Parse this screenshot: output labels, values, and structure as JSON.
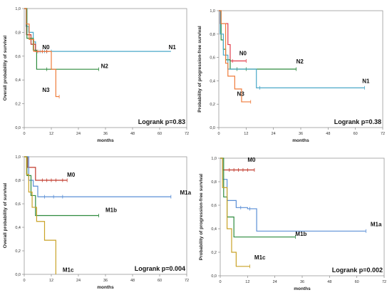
{
  "chart_data": [
    {
      "type": "line",
      "ylabel": "Overall probability of survival",
      "xlabel": "months",
      "xlim": [
        0,
        72
      ],
      "ylim": [
        0,
        1
      ],
      "xticks": [
        "0",
        "12",
        "24",
        "36",
        "48",
        "60",
        "72"
      ],
      "yticks": [
        "0,0",
        "0,2",
        "0,4",
        "0,6",
        "0,8",
        "1,0"
      ],
      "annotation": "Logrank p=0.83",
      "series": [
        {
          "name": "N1",
          "color": "#4aa8c8",
          "label_pos": [
            64,
            0.66
          ],
          "steps": [
            [
              0,
              1.0
            ],
            [
              0.8,
              0.85
            ],
            [
              2,
              0.8
            ],
            [
              4,
              0.72
            ],
            [
              5,
              0.64
            ],
            [
              65,
              0.64
            ]
          ],
          "censors": [
            [
              7,
              0.64
            ],
            [
              9,
              0.64
            ],
            [
              10,
              0.64
            ],
            [
              12,
              0.64
            ]
          ]
        },
        {
          "name": "N0",
          "color": "#c0392b",
          "label_pos": [
            8,
            0.66
          ],
          "steps": [
            [
              0,
              1.0
            ],
            [
              1,
              0.78
            ],
            [
              3,
              0.7
            ],
            [
              5,
              0.64
            ],
            [
              11,
              0.64
            ]
          ],
          "censors": [
            [
              6,
              0.64
            ],
            [
              8,
              0.64
            ],
            [
              10,
              0.64
            ]
          ]
        },
        {
          "name": "N2",
          "color": "#2e8b3e",
          "label_pos": [
            34,
            0.5
          ],
          "steps": [
            [
              0,
              1.0
            ],
            [
              1.2,
              0.75
            ],
            [
              4,
              0.65
            ],
            [
              5.5,
              0.49
            ],
            [
              33,
              0.49
            ]
          ],
          "censors": [
            [
              10,
              0.49
            ],
            [
              33,
              0.49
            ]
          ]
        },
        {
          "name": "N3",
          "color": "#ef7b3a",
          "label_pos": [
            8,
            0.3
          ],
          "steps": [
            [
              0,
              1.0
            ],
            [
              0.9,
              0.87
            ],
            [
              2.2,
              0.74
            ],
            [
              4.2,
              0.64
            ],
            [
              12,
              0.49
            ],
            [
              14,
              0.26
            ],
            [
              15.5,
              0.26
            ]
          ],
          "censors": [
            [
              15.5,
              0.26
            ]
          ]
        }
      ]
    },
    {
      "type": "line",
      "ylabel": "Probability of progression-free survival",
      "xlabel": "months",
      "xlim": [
        0,
        72
      ],
      "ylim": [
        0,
        1
      ],
      "xticks": [
        "0",
        "12",
        "24",
        "36",
        "48",
        "60",
        "72"
      ],
      "yticks": [
        "0,0",
        "0,2",
        "0,4",
        "0,6",
        "0,8",
        "1,0"
      ],
      "annotation": "Logrank p=0.38",
      "series": [
        {
          "name": "N0",
          "color": "#e23b4a",
          "label_pos": [
            9,
            0.62
          ],
          "steps": [
            [
              0,
              1.0
            ],
            [
              0.5,
              0.89
            ],
            [
              3,
              0.89
            ],
            [
              4,
              0.71
            ],
            [
              5,
              0.57
            ],
            [
              12,
              0.57
            ]
          ],
          "censors": [
            [
              6,
              0.57
            ],
            [
              12,
              0.57
            ]
          ]
        },
        {
          "name": "N2",
          "color": "#2e8b3e",
          "label_pos": [
            34,
            0.55
          ],
          "steps": [
            [
              0,
              1.0
            ],
            [
              1,
              0.75
            ],
            [
              2,
              0.67
            ],
            [
              3,
              0.58
            ],
            [
              5,
              0.5
            ],
            [
              34,
              0.5
            ]
          ],
          "censors": [
            [
              8,
              0.5
            ],
            [
              12,
              0.5
            ],
            [
              34,
              0.5
            ]
          ]
        },
        {
          "name": "N1",
          "color": "#4aa8c8",
          "label_pos": [
            63,
            0.38
          ],
          "steps": [
            [
              0,
              1.0
            ],
            [
              0.6,
              0.8
            ],
            [
              2,
              0.62
            ],
            [
              4,
              0.5
            ],
            [
              16.5,
              0.34
            ],
            [
              64,
              0.34
            ]
          ],
          "censors": [
            [
              18,
              0.34
            ],
            [
              64,
              0.34
            ]
          ]
        },
        {
          "name": "N3",
          "color": "#ef7b3a",
          "label_pos": [
            8,
            0.27
          ],
          "steps": [
            [
              0,
              1.0
            ],
            [
              1,
              0.89
            ],
            [
              3,
              0.55
            ],
            [
              4,
              0.44
            ],
            [
              7,
              0.33
            ],
            [
              10,
              0.22
            ],
            [
              14,
              0.22
            ]
          ],
          "censors": [
            [
              14,
              0.22
            ]
          ]
        }
      ]
    },
    {
      "type": "line",
      "ylabel": "Overall probability of survival",
      "xlabel": "months",
      "xlim": [
        0,
        72
      ],
      "ylim": [
        0,
        1
      ],
      "xticks": [
        "0",
        "12",
        "24",
        "36",
        "48",
        "60",
        "72"
      ],
      "yticks": [
        "0,0",
        "0,2",
        "0,4",
        "0,6",
        "0,8",
        "1,0"
      ],
      "annotation": "Logrank p=0.004",
      "series": [
        {
          "name": "M0",
          "color": "#c0392b",
          "label_pos": [
            19,
            0.83
          ],
          "steps": [
            [
              0,
              1.0
            ],
            [
              1.5,
              0.91
            ],
            [
              5,
              0.8
            ],
            [
              19,
              0.8
            ]
          ],
          "censors": [
            [
              8,
              0.8
            ],
            [
              10,
              0.8
            ],
            [
              12,
              0.8
            ],
            [
              14,
              0.8
            ],
            [
              17,
              0.8
            ],
            [
              19,
              0.8
            ]
          ]
        },
        {
          "name": "M1a",
          "color": "#5b8fd6",
          "label_pos": [
            69,
            0.68
          ],
          "steps": [
            [
              0,
              1.0
            ],
            [
              2,
              0.8
            ],
            [
              4,
              0.75
            ],
            [
              6,
              0.66
            ],
            [
              65,
              0.66
            ]
          ],
          "censors": [
            [
              9,
              0.66
            ],
            [
              13,
              0.66
            ],
            [
              17,
              0.66
            ],
            [
              65,
              0.66
            ]
          ]
        },
        {
          "name": "M1b",
          "color": "#2e8b3e",
          "label_pos": [
            36,
            0.53
          ],
          "steps": [
            [
              0,
              1.0
            ],
            [
              1.2,
              0.84
            ],
            [
              3,
              0.67
            ],
            [
              5,
              0.5
            ],
            [
              33,
              0.5
            ]
          ],
          "censors": [
            [
              33,
              0.5
            ]
          ]
        },
        {
          "name": "M1c",
          "color": "#c9a227",
          "label_pos": [
            17,
            0.02
          ],
          "steps": [
            [
              0,
              1.0
            ],
            [
              1,
              0.85
            ],
            [
              2,
              0.7
            ],
            [
              3.5,
              0.57
            ],
            [
              5.5,
              0.45
            ],
            [
              9,
              0.29
            ],
            [
              14,
              0.0
            ],
            [
              14,
              0.0
            ]
          ],
          "censors": []
        }
      ]
    },
    {
      "type": "line",
      "ylabel": "Probability of progression-free survival",
      "xlabel": "months",
      "xlim": [
        0,
        72
      ],
      "ylim": [
        0,
        1
      ],
      "xticks": [
        "0",
        "12",
        "24",
        "36",
        "48",
        "60",
        "72"
      ],
      "yticks": [
        "0,0",
        "0,2",
        "0,4",
        "0,6",
        "0,8",
        "1,0"
      ],
      "annotation": "Logrank p=0.002",
      "series": [
        {
          "name": "M0",
          "color": "#c0392b",
          "label_pos": [
            12,
            0.97
          ],
          "steps": [
            [
              0,
              1.0
            ],
            [
              1,
              0.9
            ],
            [
              15,
              0.9
            ]
          ],
          "censors": [
            [
              4,
              0.9
            ],
            [
              6,
              0.9
            ],
            [
              8,
              0.9
            ],
            [
              10,
              0.9
            ],
            [
              12,
              0.9
            ],
            [
              15,
              0.9
            ]
          ]
        },
        {
          "name": "M1a",
          "color": "#5b8fd6",
          "label_pos": [
            66,
            0.42
          ],
          "steps": [
            [
              0,
              1.0
            ],
            [
              1,
              0.82
            ],
            [
              3,
              0.64
            ],
            [
              7,
              0.58
            ],
            [
              12,
              0.57
            ],
            [
              16,
              0.38
            ],
            [
              64,
              0.38
            ]
          ],
          "censors": [
            [
              9,
              0.58
            ],
            [
              13,
              0.57
            ],
            [
              64,
              0.38
            ]
          ]
        },
        {
          "name": "M1b",
          "color": "#2e8b3e",
          "label_pos": [
            33,
            0.34
          ],
          "steps": [
            [
              0,
              1.0
            ],
            [
              1.5,
              0.67
            ],
            [
              3,
              0.5
            ],
            [
              6,
              0.33
            ],
            [
              33,
              0.33
            ]
          ],
          "censors": [
            [
              33,
              0.33
            ]
          ]
        },
        {
          "name": "M1c",
          "color": "#c9a227",
          "label_pos": [
            15,
            0.14
          ],
          "steps": [
            [
              0,
              1.0
            ],
            [
              1,
              0.75
            ],
            [
              3,
              0.4
            ],
            [
              5,
              0.2
            ],
            [
              7,
              0.08
            ],
            [
              13,
              0.08
            ]
          ],
          "censors": [
            [
              13,
              0.08
            ]
          ]
        }
      ]
    }
  ]
}
